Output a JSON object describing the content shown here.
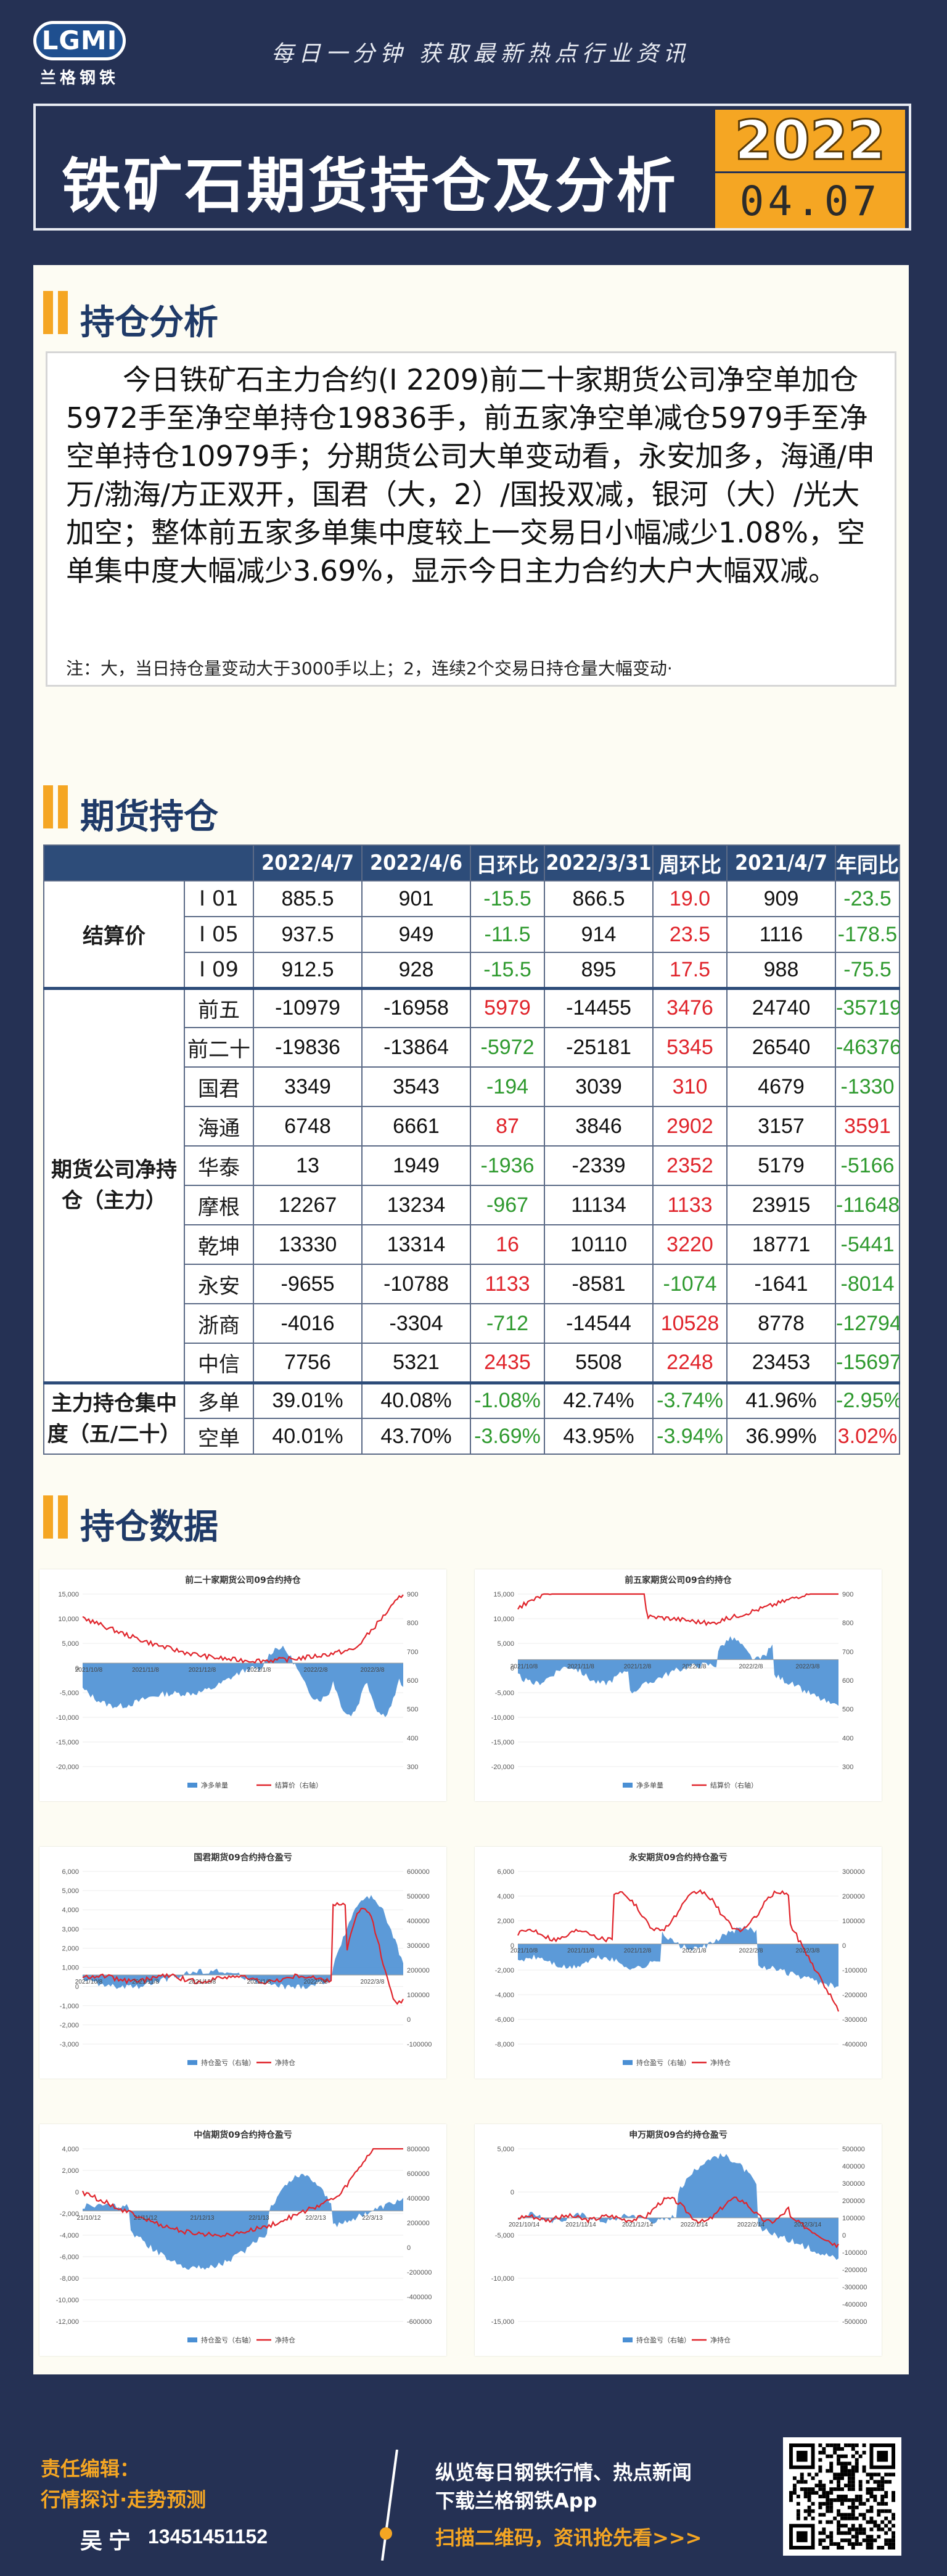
{
  "header": {
    "logo_text": "LGMI",
    "logo_sub": "兰格钢铁",
    "slogan": "每日一分钟  获取最新热点行业资讯",
    "title": "铁矿石期货持仓及分析",
    "date_year": "2022",
    "date_md": "04.07"
  },
  "sections": {
    "analysis": "持仓分析",
    "futures": "期货持仓",
    "charts": "持仓数据"
  },
  "analysis": {
    "text": "今日铁矿石主力合约(I 2209)前二十家期货公司净空单加仓5972手至净空单持仓19836手，前五家净空单减仓5979手至净空单持仓10979手；分期货公司大单变动看，永安加多，海通/申万/渤海/方正双开，国君（大，2）/国投双减，银河（大）/光大加空；整体前五家多单集中度较上一交易日小幅减少1.08%，空单集中度大幅减少3.69%，显示今日主力合约大户大幅双减。",
    "note": "注：大，当日持仓量变动大于3000手以上；2，连续2个交易日持仓量大幅变动·"
  },
  "table": {
    "headers": [
      "",
      "",
      "2022/4/7",
      "2022/4/6",
      "日环比",
      "2022/3/31",
      "周环比",
      "2021/4/7",
      "年同比"
    ],
    "settle_label": "结算价",
    "settle_rows": [
      {
        "name": "I 01",
        "v1": "885.5",
        "v2": "901",
        "d": "-15.5",
        "v3": "866.5",
        "w": "19.0",
        "v4": "909",
        "y": "-23.5"
      },
      {
        "name": "I 05",
        "v1": "937.5",
        "v2": "949",
        "d": "-11.5",
        "v3": "914",
        "w": "23.5",
        "v4": "1116",
        "y": "-178.5"
      },
      {
        "name": "I 09",
        "v1": "912.5",
        "v2": "928",
        "d": "-15.5",
        "v3": "895",
        "w": "17.5",
        "v4": "988",
        "y": "-75.5"
      }
    ],
    "net_label": "期货公司净持仓（主力）",
    "net_rows": [
      {
        "name": "前五",
        "v1": "-10979",
        "v2": "-16958",
        "d": "5979",
        "v3": "-14455",
        "w": "3476",
        "v4": "24740",
        "y": "-35719"
      },
      {
        "name": "前二十",
        "v1": "-19836",
        "v2": "-13864",
        "d": "-5972",
        "v3": "-25181",
        "w": "5345",
        "v4": "26540",
        "y": "-46376"
      },
      {
        "name": "国君",
        "v1": "3349",
        "v2": "3543",
        "d": "-194",
        "v3": "3039",
        "w": "310",
        "v4": "4679",
        "y": "-1330"
      },
      {
        "name": "海通",
        "v1": "6748",
        "v2": "6661",
        "d": "87",
        "v3": "3846",
        "w": "2902",
        "v4": "3157",
        "y": "3591"
      },
      {
        "name": "华泰",
        "v1": "13",
        "v2": "1949",
        "d": "-1936",
        "v3": "-2339",
        "w": "2352",
        "v4": "5179",
        "y": "-5166"
      },
      {
        "name": "摩根",
        "v1": "12267",
        "v2": "13234",
        "d": "-967",
        "v3": "11134",
        "w": "1133",
        "v4": "23915",
        "y": "-11648"
      },
      {
        "name": "乾坤",
        "v1": "13330",
        "v2": "13314",
        "d": "16",
        "v3": "10110",
        "w": "3220",
        "v4": "18771",
        "y": "-5441"
      },
      {
        "name": "永安",
        "v1": "-9655",
        "v2": "-10788",
        "d": "1133",
        "v3": "-8581",
        "w": "-1074",
        "v4": "-1641",
        "y": "-8014"
      },
      {
        "name": "浙商",
        "v1": "-4016",
        "v2": "-3304",
        "d": "-712",
        "v3": "-14544",
        "w": "10528",
        "v4": "8778",
        "y": "-12794"
      },
      {
        "name": "中信",
        "v1": "7756",
        "v2": "5321",
        "d": "2435",
        "v3": "5508",
        "w": "2248",
        "v4": "23453",
        "y": "-15697"
      }
    ],
    "conc_label": "主力持仓集中度（五/二十）",
    "conc_rows": [
      {
        "name": "多单",
        "v1": "39.01%",
        "v2": "40.08%",
        "d": "-1.08%",
        "v3": "42.74%",
        "w": "-3.74%",
        "v4": "41.96%",
        "y": "-2.95%"
      },
      {
        "name": "空单",
        "v1": "40.01%",
        "v2": "43.70%",
        "d": "-3.69%",
        "v3": "43.95%",
        "w": "-3.94%",
        "v4": "36.99%",
        "y": "3.02%"
      }
    ]
  },
  "chart_data": [
    {
      "type": "area",
      "title": "前二十家期货公司09合约持仓",
      "series": [
        {
          "name": "净多单量"
        },
        {
          "name": "结算价（右轴）"
        }
      ],
      "y_left_ticks": [
        "15,000",
        "10,000",
        "5,000",
        "0",
        "-5,000",
        "-10,000",
        "-15,000",
        "-20,000"
      ],
      "y_right_ticks": [
        "900",
        "800",
        "700",
        "600",
        "500",
        "400",
        "300"
      ],
      "x_ticks": [
        "2021/10/8",
        "2021/11/8",
        "2021/12/8",
        "2022/1/8",
        "2022/2/8",
        "2022/3/8"
      ]
    },
    {
      "type": "area",
      "title": "前五家期货公司09合约持仓",
      "series": [
        {
          "name": "净多单量"
        },
        {
          "name": "结算价（右轴）"
        }
      ],
      "y_left_ticks": [
        "15,000",
        "10,000",
        "5,000",
        "0",
        "-5,000",
        "-10,000",
        "-15,000",
        "-20,000"
      ],
      "y_right_ticks": [
        "900",
        "800",
        "700",
        "600",
        "500",
        "400",
        "300"
      ],
      "x_ticks": [
        "2021/10/8",
        "2021/11/8",
        "2021/12/8",
        "2022/1/8",
        "2022/2/8",
        "2022/3/8"
      ]
    },
    {
      "type": "area",
      "title": "国君期货09合约持仓盈亏",
      "series": [
        {
          "name": "持仓盈亏（右轴）"
        },
        {
          "name": "净持仓"
        }
      ],
      "y_left_ticks": [
        "6,000",
        "5,000",
        "4,000",
        "3,000",
        "2,000",
        "1,000",
        "0",
        "-1,000",
        "-2,000",
        "-3,000"
      ],
      "y_right_ticks": [
        "600000",
        "500000",
        "400000",
        "300000",
        "200000",
        "100000",
        "0",
        "-100000"
      ],
      "x_ticks": [
        "2021/10/8",
        "2021/11/8",
        "2021/12/8",
        "2022/1/8",
        "2022/2/8",
        "2022/3/8"
      ]
    },
    {
      "type": "area",
      "title": "永安期货09合约持仓盈亏",
      "series": [
        {
          "name": "持仓盈亏（右轴）"
        },
        {
          "name": "净持仓"
        }
      ],
      "y_left_ticks": [
        "6,000",
        "4,000",
        "2,000",
        "0",
        "-2,000",
        "-4,000",
        "-6,000",
        "-8,000"
      ],
      "y_right_ticks": [
        "300000",
        "200000",
        "100000",
        "0",
        "-100000",
        "-200000",
        "-300000",
        "-400000"
      ],
      "x_ticks": [
        "2021/10/8",
        "2021/11/8",
        "2021/12/8",
        "2022/1/8",
        "2022/2/8",
        "2022/3/8"
      ]
    },
    {
      "type": "area",
      "title": "中信期货09合约持仓盈亏",
      "series": [
        {
          "name": "持仓盈亏（右轴）"
        },
        {
          "name": "净持仓"
        }
      ],
      "y_left_ticks": [
        "4,000",
        "2,000",
        "0",
        "-2,000",
        "-4,000",
        "-6,000",
        "-8,000",
        "-10,000",
        "-12,000"
      ],
      "y_right_ticks": [
        "800000",
        "600000",
        "400000",
        "200000",
        "0",
        "-200000",
        "-400000",
        "-600000"
      ],
      "x_ticks": [
        "21/10/12",
        "21/11/12",
        "21/12/13",
        "22/1/13",
        "22/2/13",
        "22/3/13"
      ]
    },
    {
      "type": "area",
      "title": "申万期货09合约持仓盈亏",
      "series": [
        {
          "name": "持仓盈亏（右轴）"
        },
        {
          "name": "净持仓"
        }
      ],
      "y_left_ticks": [
        "5,000",
        "0",
        "-5,000",
        "-10,000",
        "-15,000"
      ],
      "y_right_ticks": [
        "500000",
        "400000",
        "300000",
        "200000",
        "100000",
        "0",
        "-100000",
        "-200000",
        "-300000",
        "-400000",
        "-500000"
      ],
      "x_ticks": [
        "2021/10/14",
        "2021/11/14",
        "2021/12/14",
        "2022/1/14",
        "2022/2/14",
        "2022/3/14"
      ]
    }
  ],
  "footer": {
    "editor_label": "责任编辑：",
    "topic": "行情探讨·走势预测",
    "person": "吴宁",
    "phone": "13451451152",
    "line1": "纵览每日钢铁行情、热点新闻",
    "line2": "下载兰格钢铁App",
    "line3": "扫描二维码，资讯抢先看>>>"
  },
  "colors": {
    "background": "#253154",
    "accent": "#f5a623",
    "panel": "#fdfcf3",
    "table_header": "#2d4c79",
    "up": "#e0242b",
    "down": "#2f9a2f",
    "area": "#4a8fd4",
    "line": "#e0242b"
  }
}
